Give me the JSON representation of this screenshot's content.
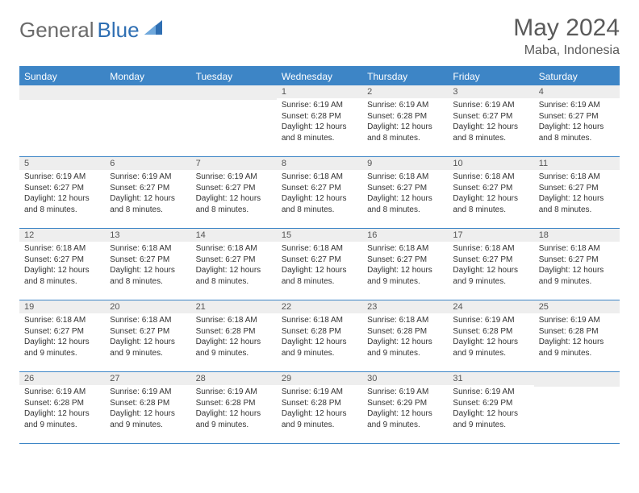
{
  "brand": {
    "part1": "General",
    "part2": "Blue"
  },
  "title": "May 2024",
  "location": "Maba, Indonesia",
  "colors": {
    "header_bg": "#3d85c6",
    "header_text": "#ffffff",
    "daynum_bg": "#eeeeee",
    "border": "#3d85c6",
    "logo_gray": "#6a6a6a",
    "logo_blue": "#2f6fb3"
  },
  "day_names": [
    "Sunday",
    "Monday",
    "Tuesday",
    "Wednesday",
    "Thursday",
    "Friday",
    "Saturday"
  ],
  "weeks": [
    [
      {
        "day": ""
      },
      {
        "day": ""
      },
      {
        "day": ""
      },
      {
        "day": "1",
        "sunrise": "Sunrise: 6:19 AM",
        "sunset": "Sunset: 6:28 PM",
        "daylight": "Daylight: 12 hours and 8 minutes."
      },
      {
        "day": "2",
        "sunrise": "Sunrise: 6:19 AM",
        "sunset": "Sunset: 6:28 PM",
        "daylight": "Daylight: 12 hours and 8 minutes."
      },
      {
        "day": "3",
        "sunrise": "Sunrise: 6:19 AM",
        "sunset": "Sunset: 6:27 PM",
        "daylight": "Daylight: 12 hours and 8 minutes."
      },
      {
        "day": "4",
        "sunrise": "Sunrise: 6:19 AM",
        "sunset": "Sunset: 6:27 PM",
        "daylight": "Daylight: 12 hours and 8 minutes."
      }
    ],
    [
      {
        "day": "5",
        "sunrise": "Sunrise: 6:19 AM",
        "sunset": "Sunset: 6:27 PM",
        "daylight": "Daylight: 12 hours and 8 minutes."
      },
      {
        "day": "6",
        "sunrise": "Sunrise: 6:19 AM",
        "sunset": "Sunset: 6:27 PM",
        "daylight": "Daylight: 12 hours and 8 minutes."
      },
      {
        "day": "7",
        "sunrise": "Sunrise: 6:19 AM",
        "sunset": "Sunset: 6:27 PM",
        "daylight": "Daylight: 12 hours and 8 minutes."
      },
      {
        "day": "8",
        "sunrise": "Sunrise: 6:18 AM",
        "sunset": "Sunset: 6:27 PM",
        "daylight": "Daylight: 12 hours and 8 minutes."
      },
      {
        "day": "9",
        "sunrise": "Sunrise: 6:18 AM",
        "sunset": "Sunset: 6:27 PM",
        "daylight": "Daylight: 12 hours and 8 minutes."
      },
      {
        "day": "10",
        "sunrise": "Sunrise: 6:18 AM",
        "sunset": "Sunset: 6:27 PM",
        "daylight": "Daylight: 12 hours and 8 minutes."
      },
      {
        "day": "11",
        "sunrise": "Sunrise: 6:18 AM",
        "sunset": "Sunset: 6:27 PM",
        "daylight": "Daylight: 12 hours and 8 minutes."
      }
    ],
    [
      {
        "day": "12",
        "sunrise": "Sunrise: 6:18 AM",
        "sunset": "Sunset: 6:27 PM",
        "daylight": "Daylight: 12 hours and 8 minutes."
      },
      {
        "day": "13",
        "sunrise": "Sunrise: 6:18 AM",
        "sunset": "Sunset: 6:27 PM",
        "daylight": "Daylight: 12 hours and 8 minutes."
      },
      {
        "day": "14",
        "sunrise": "Sunrise: 6:18 AM",
        "sunset": "Sunset: 6:27 PM",
        "daylight": "Daylight: 12 hours and 8 minutes."
      },
      {
        "day": "15",
        "sunrise": "Sunrise: 6:18 AM",
        "sunset": "Sunset: 6:27 PM",
        "daylight": "Daylight: 12 hours and 8 minutes."
      },
      {
        "day": "16",
        "sunrise": "Sunrise: 6:18 AM",
        "sunset": "Sunset: 6:27 PM",
        "daylight": "Daylight: 12 hours and 9 minutes."
      },
      {
        "day": "17",
        "sunrise": "Sunrise: 6:18 AM",
        "sunset": "Sunset: 6:27 PM",
        "daylight": "Daylight: 12 hours and 9 minutes."
      },
      {
        "day": "18",
        "sunrise": "Sunrise: 6:18 AM",
        "sunset": "Sunset: 6:27 PM",
        "daylight": "Daylight: 12 hours and 9 minutes."
      }
    ],
    [
      {
        "day": "19",
        "sunrise": "Sunrise: 6:18 AM",
        "sunset": "Sunset: 6:27 PM",
        "daylight": "Daylight: 12 hours and 9 minutes."
      },
      {
        "day": "20",
        "sunrise": "Sunrise: 6:18 AM",
        "sunset": "Sunset: 6:27 PM",
        "daylight": "Daylight: 12 hours and 9 minutes."
      },
      {
        "day": "21",
        "sunrise": "Sunrise: 6:18 AM",
        "sunset": "Sunset: 6:28 PM",
        "daylight": "Daylight: 12 hours and 9 minutes."
      },
      {
        "day": "22",
        "sunrise": "Sunrise: 6:18 AM",
        "sunset": "Sunset: 6:28 PM",
        "daylight": "Daylight: 12 hours and 9 minutes."
      },
      {
        "day": "23",
        "sunrise": "Sunrise: 6:18 AM",
        "sunset": "Sunset: 6:28 PM",
        "daylight": "Daylight: 12 hours and 9 minutes."
      },
      {
        "day": "24",
        "sunrise": "Sunrise: 6:19 AM",
        "sunset": "Sunset: 6:28 PM",
        "daylight": "Daylight: 12 hours and 9 minutes."
      },
      {
        "day": "25",
        "sunrise": "Sunrise: 6:19 AM",
        "sunset": "Sunset: 6:28 PM",
        "daylight": "Daylight: 12 hours and 9 minutes."
      }
    ],
    [
      {
        "day": "26",
        "sunrise": "Sunrise: 6:19 AM",
        "sunset": "Sunset: 6:28 PM",
        "daylight": "Daylight: 12 hours and 9 minutes."
      },
      {
        "day": "27",
        "sunrise": "Sunrise: 6:19 AM",
        "sunset": "Sunset: 6:28 PM",
        "daylight": "Daylight: 12 hours and 9 minutes."
      },
      {
        "day": "28",
        "sunrise": "Sunrise: 6:19 AM",
        "sunset": "Sunset: 6:28 PM",
        "daylight": "Daylight: 12 hours and 9 minutes."
      },
      {
        "day": "29",
        "sunrise": "Sunrise: 6:19 AM",
        "sunset": "Sunset: 6:28 PM",
        "daylight": "Daylight: 12 hours and 9 minutes."
      },
      {
        "day": "30",
        "sunrise": "Sunrise: 6:19 AM",
        "sunset": "Sunset: 6:29 PM",
        "daylight": "Daylight: 12 hours and 9 minutes."
      },
      {
        "day": "31",
        "sunrise": "Sunrise: 6:19 AM",
        "sunset": "Sunset: 6:29 PM",
        "daylight": "Daylight: 12 hours and 9 minutes."
      },
      {
        "day": ""
      }
    ]
  ]
}
